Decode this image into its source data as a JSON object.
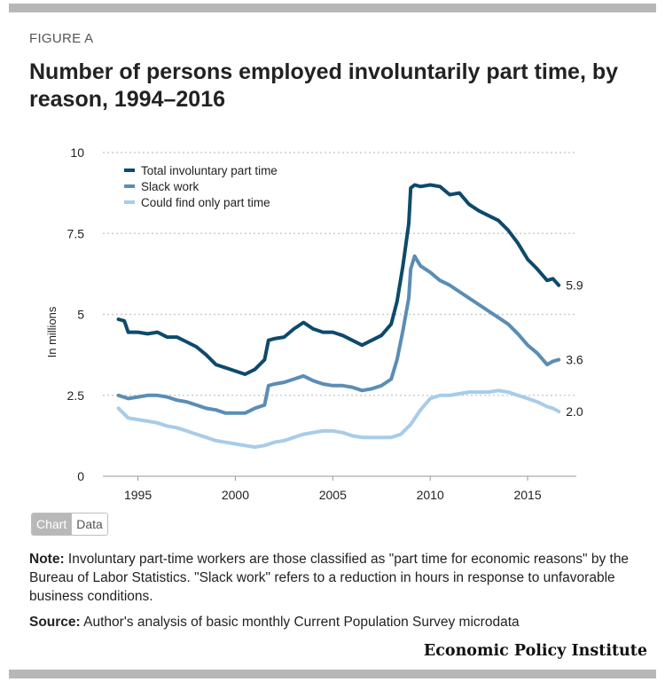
{
  "figure_label": "FIGURE A",
  "title": "Number of persons employed involuntarily part time, by reason, 1994–2016",
  "tabs": {
    "chart": "Chart",
    "data": "Data"
  },
  "note": {
    "label": "Note:",
    "text": "Involuntary part-time workers are those classified as \"part time for economic reasons\" by the Bureau of Labor Statistics. \"Slack work\" refers to a reduction in hours in response to unfavorable business conditions."
  },
  "source": {
    "label": "Source:",
    "text": "Author's analysis of basic monthly Current Population Survey microdata"
  },
  "logo": "Economic Policy Institute",
  "colors": {
    "total": "#0d4a6b",
    "slack": "#5b8db5",
    "could": "#a8cce9",
    "grid": "#cccccc"
  },
  "chart_data": {
    "type": "line",
    "title": "Number of persons employed involuntarily part time, by reason, 1994–2016",
    "xlabel": "",
    "ylabel": "In millions",
    "xlim": [
      1993.2,
      2017.5
    ],
    "ylim": [
      0,
      10
    ],
    "x_ticks": [
      1995,
      2000,
      2005,
      2010,
      2015
    ],
    "y_ticks": [
      0,
      2.5,
      5,
      7.5,
      10
    ],
    "y_tick_labels": [
      "0",
      "2.5",
      "5",
      "7.5",
      "10"
    ],
    "grid": true,
    "legend_position": "top-left",
    "end_labels": [
      "5.9",
      "3.6",
      "2.0"
    ],
    "series": [
      {
        "name": "Total involuntary part time",
        "color": "#0d4a6b",
        "end_label": "5.9",
        "x": [
          1994.0,
          1994.3,
          1994.5,
          1995.0,
          1995.5,
          1996.0,
          1996.5,
          1997.0,
          1997.5,
          1998.0,
          1998.5,
          1999.0,
          1999.5,
          2000.0,
          2000.5,
          2001.0,
          2001.5,
          2001.7,
          2002.0,
          2002.5,
          2003.0,
          2003.5,
          2004.0,
          2004.5,
          2005.0,
          2005.5,
          2006.0,
          2006.5,
          2007.0,
          2007.5,
          2008.0,
          2008.3,
          2008.6,
          2008.9,
          2009.0,
          2009.2,
          2009.5,
          2010.0,
          2010.5,
          2011.0,
          2011.5,
          2012.0,
          2012.5,
          2013.0,
          2013.5,
          2014.0,
          2014.5,
          2015.0,
          2015.5,
          2016.0,
          2016.3,
          2016.6
        ],
        "y": [
          4.85,
          4.8,
          4.45,
          4.45,
          4.4,
          4.45,
          4.3,
          4.3,
          4.15,
          4.0,
          3.75,
          3.45,
          3.35,
          3.25,
          3.15,
          3.3,
          3.6,
          4.2,
          4.25,
          4.3,
          4.55,
          4.75,
          4.55,
          4.45,
          4.45,
          4.35,
          4.2,
          4.05,
          4.2,
          4.35,
          4.7,
          5.4,
          6.5,
          7.8,
          8.9,
          9.0,
          8.95,
          9.0,
          8.95,
          8.7,
          8.75,
          8.4,
          8.2,
          8.05,
          7.9,
          7.6,
          7.2,
          6.7,
          6.4,
          6.05,
          6.1,
          5.9
        ]
      },
      {
        "name": "Slack work",
        "color": "#5b8db5",
        "end_label": "3.6",
        "x": [
          1994.0,
          1994.5,
          1995.0,
          1995.5,
          1996.0,
          1996.5,
          1997.0,
          1997.5,
          1998.0,
          1998.5,
          1999.0,
          1999.5,
          2000.0,
          2000.5,
          2001.0,
          2001.5,
          2001.7,
          2002.0,
          2002.5,
          2003.0,
          2003.5,
          2004.0,
          2004.5,
          2005.0,
          2005.5,
          2006.0,
          2006.5,
          2007.0,
          2007.5,
          2008.0,
          2008.3,
          2008.6,
          2008.9,
          2009.0,
          2009.2,
          2009.5,
          2010.0,
          2010.5,
          2011.0,
          2011.5,
          2012.0,
          2012.5,
          2013.0,
          2013.5,
          2014.0,
          2014.5,
          2015.0,
          2015.5,
          2016.0,
          2016.3,
          2016.6
        ],
        "y": [
          2.5,
          2.4,
          2.45,
          2.5,
          2.5,
          2.45,
          2.35,
          2.3,
          2.2,
          2.1,
          2.05,
          1.95,
          1.95,
          1.95,
          2.1,
          2.2,
          2.8,
          2.85,
          2.9,
          3.0,
          3.1,
          2.95,
          2.85,
          2.8,
          2.8,
          2.75,
          2.65,
          2.7,
          2.8,
          3.0,
          3.6,
          4.5,
          5.5,
          6.4,
          6.8,
          6.5,
          6.3,
          6.05,
          5.9,
          5.7,
          5.5,
          5.3,
          5.1,
          4.9,
          4.7,
          4.4,
          4.05,
          3.8,
          3.45,
          3.55,
          3.6
        ]
      },
      {
        "name": "Could find only part time",
        "color": "#a8cce9",
        "end_label": "2.0",
        "x": [
          1994.0,
          1994.5,
          1995.0,
          1995.5,
          1996.0,
          1996.5,
          1997.0,
          1997.5,
          1998.0,
          1998.5,
          1999.0,
          1999.5,
          2000.0,
          2000.5,
          2001.0,
          2001.5,
          2002.0,
          2002.5,
          2003.0,
          2003.5,
          2004.0,
          2004.5,
          2005.0,
          2005.5,
          2006.0,
          2006.5,
          2007.0,
          2007.5,
          2008.0,
          2008.5,
          2009.0,
          2009.5,
          2010.0,
          2010.5,
          2011.0,
          2011.5,
          2012.0,
          2012.5,
          2013.0,
          2013.5,
          2014.0,
          2014.5,
          2015.0,
          2015.5,
          2016.0,
          2016.3,
          2016.6
        ],
        "y": [
          2.1,
          1.8,
          1.75,
          1.7,
          1.65,
          1.55,
          1.5,
          1.4,
          1.3,
          1.2,
          1.1,
          1.05,
          1.0,
          0.95,
          0.9,
          0.95,
          1.05,
          1.1,
          1.2,
          1.3,
          1.35,
          1.4,
          1.4,
          1.35,
          1.25,
          1.2,
          1.2,
          1.2,
          1.2,
          1.3,
          1.6,
          2.05,
          2.4,
          2.5,
          2.5,
          2.55,
          2.6,
          2.6,
          2.6,
          2.65,
          2.6,
          2.5,
          2.4,
          2.3,
          2.15,
          2.1,
          2.0
        ]
      }
    ]
  }
}
